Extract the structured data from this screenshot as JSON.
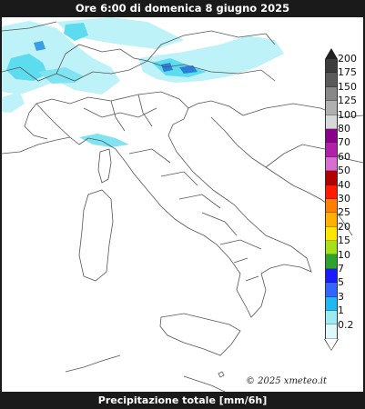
{
  "header": {
    "title": "Ore 6:00 di domenica 8 giugno 2025"
  },
  "footer": {
    "caption": "Precipitazione totale [mm/6h]"
  },
  "credit": {
    "text": "© 2025 xmeteo.it"
  },
  "legend": {
    "levels": [
      {
        "label": "200",
        "color": "#3c3c3c"
      },
      {
        "label": "175",
        "color": "#5a5a5a"
      },
      {
        "label": "150",
        "color": "#888888"
      },
      {
        "label": "125",
        "color": "#b0b0b0"
      },
      {
        "label": "100",
        "color": "#d8d8d8"
      },
      {
        "label": "80",
        "color": "#8b008b"
      },
      {
        "label": "70",
        "color": "#b21fa8"
      },
      {
        "label": "60",
        "color": "#d86fd0"
      },
      {
        "label": "50",
        "color": "#b00000"
      },
      {
        "label": "40",
        "color": "#ff1a00"
      },
      {
        "label": "30",
        "color": "#ff8000"
      },
      {
        "label": "25",
        "color": "#ffb000"
      },
      {
        "label": "20",
        "color": "#ffe600"
      },
      {
        "label": "15",
        "color": "#a6e01a"
      },
      {
        "label": "10",
        "color": "#2fa12f"
      },
      {
        "label": "7",
        "color": "#1a1aff"
      },
      {
        "label": "5",
        "color": "#3366ff"
      },
      {
        "label": "3",
        "color": "#22b8f0"
      },
      {
        "label": "1",
        "color": "#9fe9f5"
      },
      {
        "label": "0.2",
        "color": "#dff8fb"
      }
    ]
  },
  "colors": {
    "background": "#1a1a1a",
    "map_background": "#ffffff",
    "border_lines": "#555555",
    "light_rain": "#bdf2f8",
    "moderate_rain": "#5ddcf0",
    "heavy_rain": "#2a7fd8"
  }
}
